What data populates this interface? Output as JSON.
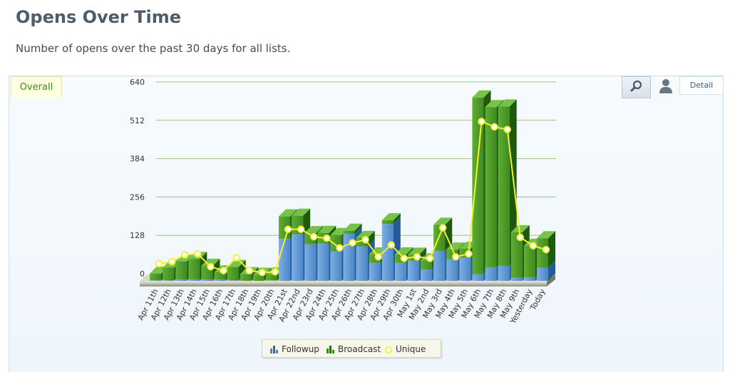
{
  "page": {
    "title": "Opens Over Time",
    "description": "Number of opens over the past 30 days for all lists."
  },
  "toolbar": {
    "tab_overall": "Overall",
    "detail_label": "Detail",
    "zoom_icon": "magnifier-icon",
    "user_icon": "user-icon"
  },
  "colors": {
    "followup": "#4a86c8",
    "broadcast": "#3f8a1f",
    "unique": "#f2f230",
    "gridline": "#9dc27e"
  },
  "chart_data": {
    "type": "bar",
    "stacked": true,
    "categories": [
      "Apr 11th",
      "Apr 12th",
      "Apr 13th",
      "Apr 14th",
      "Apr 15th",
      "Apr 16th",
      "Apr 17th",
      "Apr 18th",
      "Apr 19th",
      "Apr 20th",
      "Apr 21st",
      "Apr 22nd",
      "Apr 23rd",
      "Apr 24th",
      "Apr 25th",
      "Apr 26th",
      "Apr 27th",
      "Apr 28th",
      "Apr 29th",
      "Apr 30th",
      "May 1st",
      "May 2nd",
      "May 3rd",
      "May 4th",
      "May 5th",
      "May 6th",
      "May 7th",
      "May 8th",
      "May 9th",
      "Yesterday",
      "Today"
    ],
    "series": [
      {
        "name": "Followup",
        "type": "bar",
        "values": [
          2,
          2,
          5,
          5,
          5,
          4,
          2,
          0,
          0,
          1,
          140,
          155,
          122,
          125,
          98,
          157,
          115,
          60,
          190,
          60,
          67,
          38,
          100,
          72,
          78,
          22,
          45,
          50,
          10,
          12,
          44
        ]
      },
      {
        "name": "Broadcast",
        "type": "bar",
        "values": [
          22,
          42,
          60,
          68,
          45,
          24,
          44,
          22,
          20,
          20,
          75,
          62,
          37,
          35,
          55,
          10,
          28,
          28,
          12,
          28,
          20,
          30,
          87,
          32,
          29,
          590,
          535,
          532,
          152,
          105,
          98
        ]
      },
      {
        "name": "Unique",
        "type": "line",
        "values": [
          45,
          52,
          75,
          78,
          35,
          22,
          65,
          22,
          16,
          18,
          160,
          160,
          135,
          130,
          98,
          115,
          125,
          68,
          108,
          63,
          68,
          63,
          165,
          68,
          78,
          520,
          502,
          493,
          133,
          105,
          92
        ]
      }
    ],
    "ylim": [
      0,
      640
    ],
    "yticks": [
      0,
      128,
      256,
      384,
      512,
      640
    ],
    "grid": true,
    "legend_position": "bottom-center"
  }
}
